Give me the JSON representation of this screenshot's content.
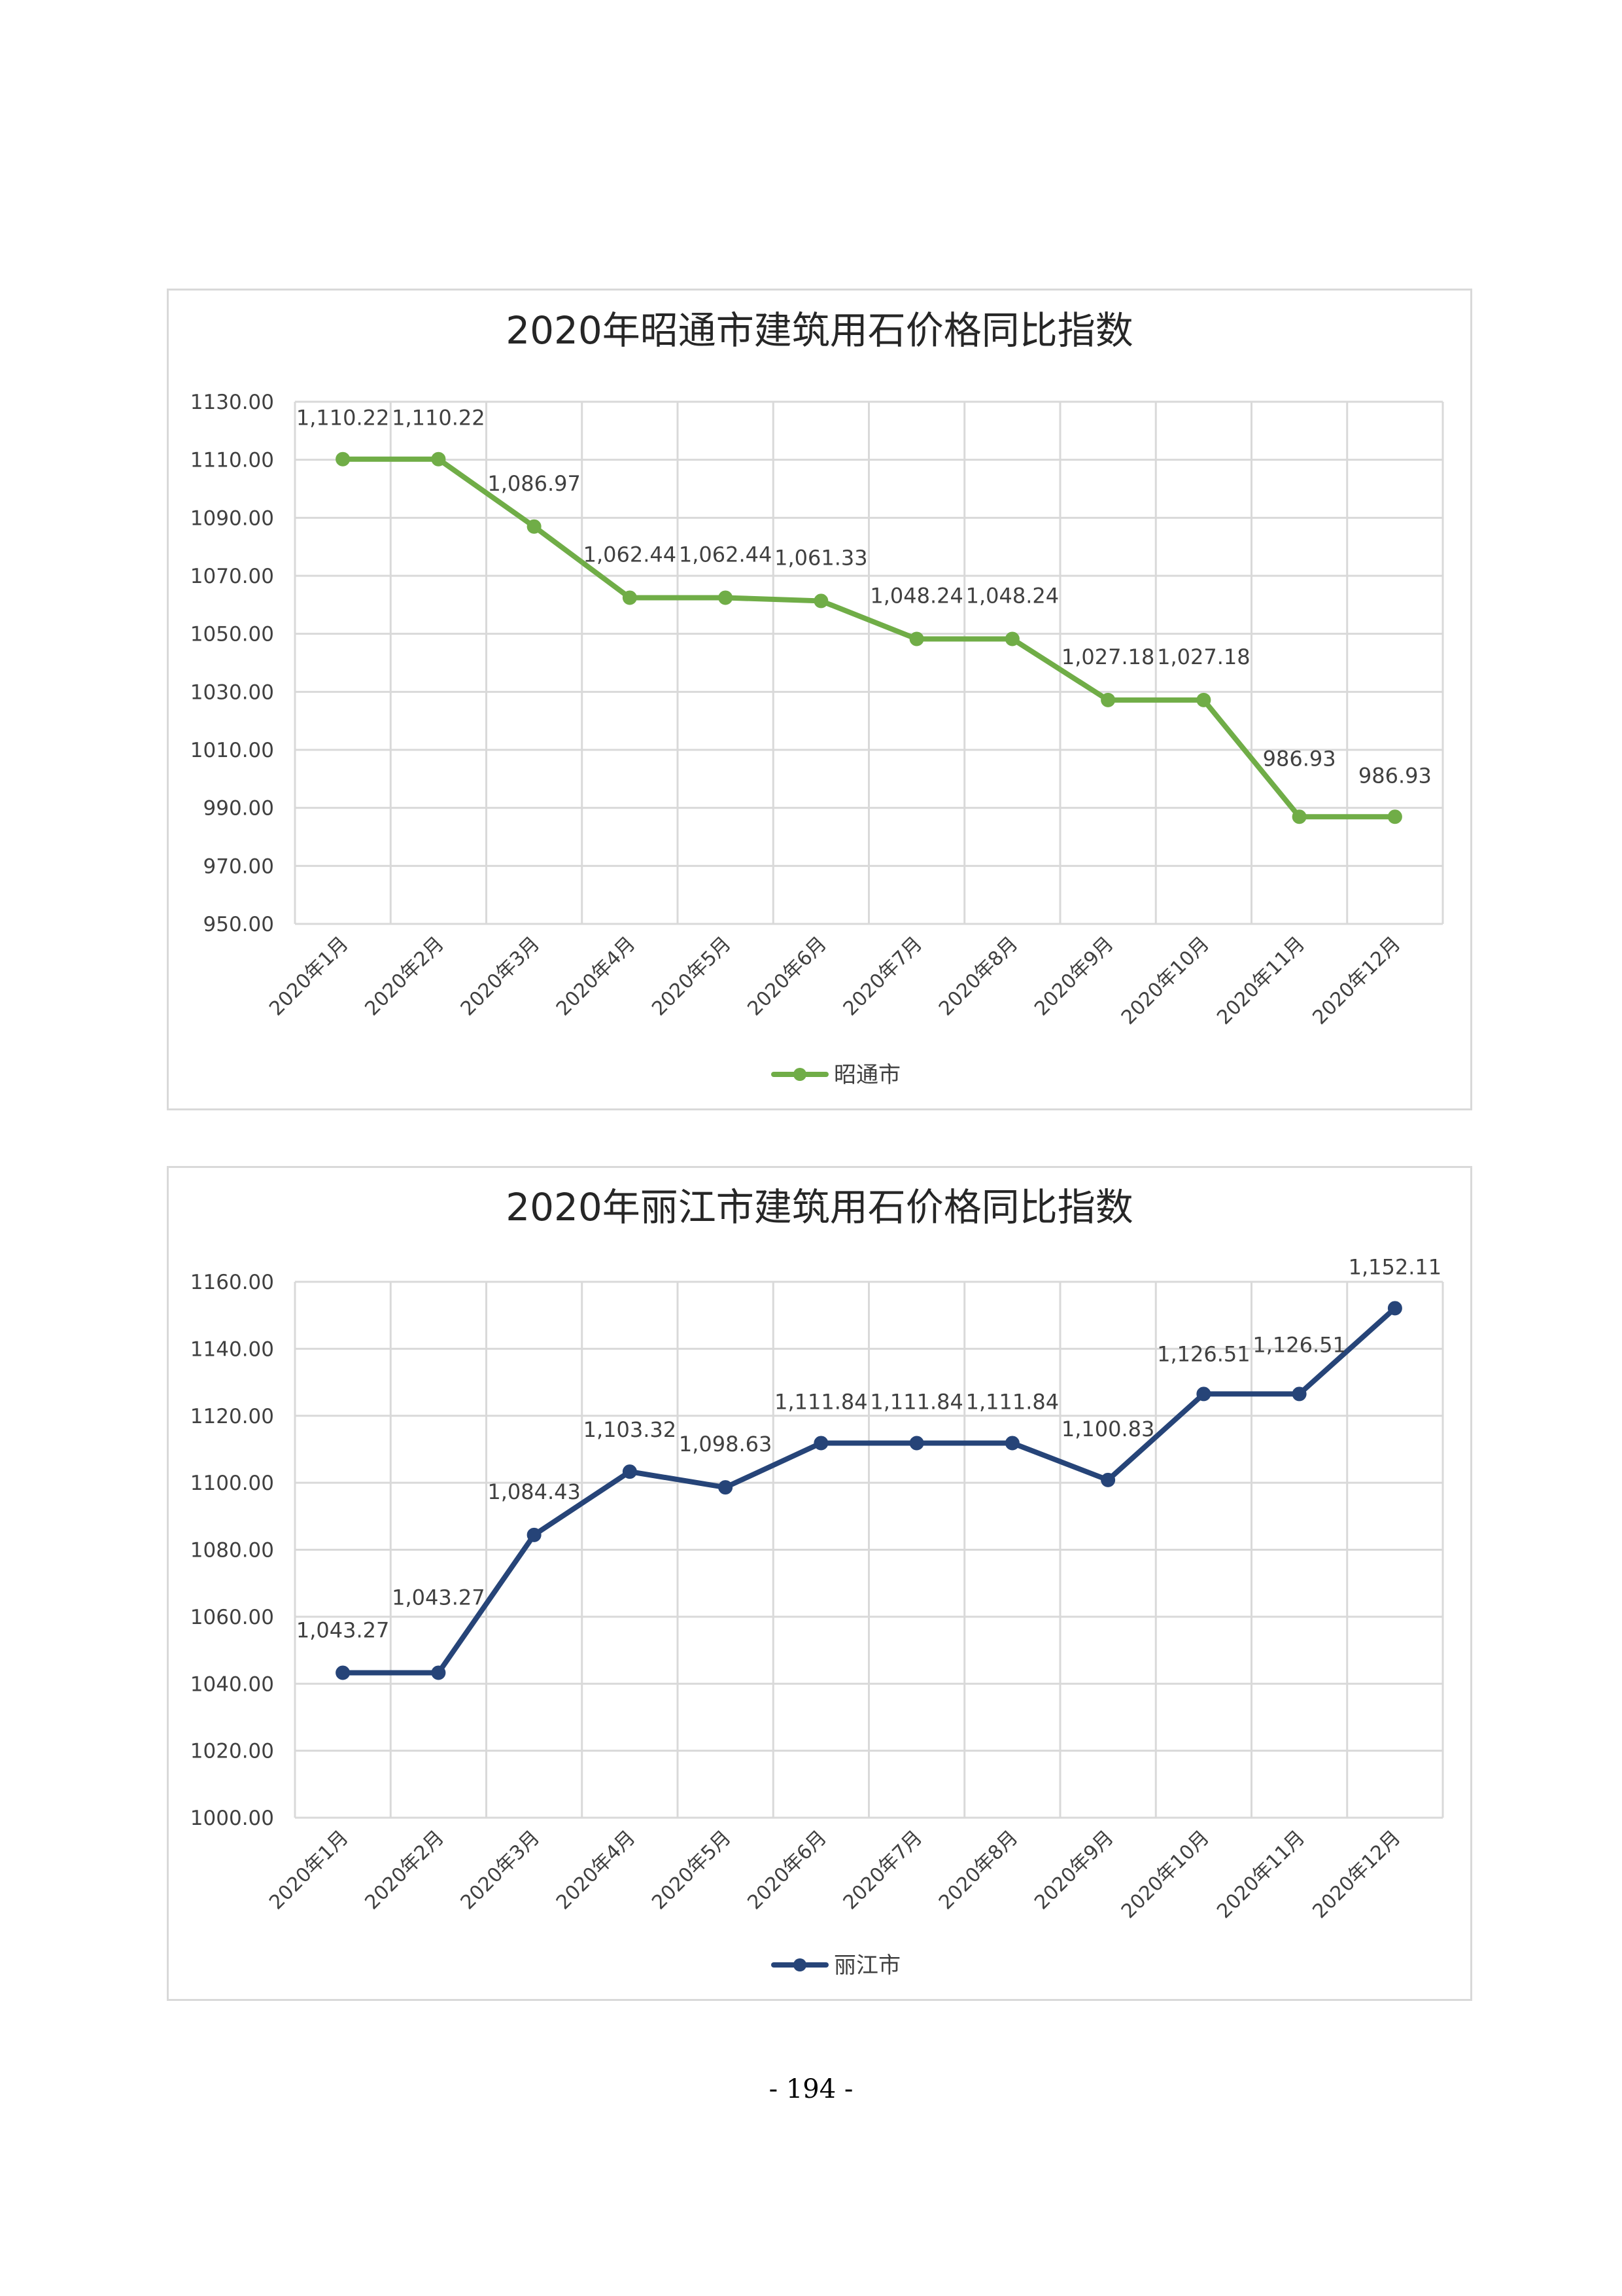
{
  "page": {
    "number": "- 194 -"
  },
  "chart_data": [
    {
      "type": "line",
      "title": "2020年昭通市建筑用石价格同比指数",
      "categories": [
        "2020年1月",
        "2020年2月",
        "2020年3月",
        "2020年4月",
        "2020年5月",
        "2020年6月",
        "2020年7月",
        "2020年8月",
        "2020年9月",
        "2020年10月",
        "2020年11月",
        "2020年12月"
      ],
      "series": [
        {
          "name": "昭通市",
          "color": "#70ad47",
          "values": [
            1110.22,
            1110.22,
            1086.97,
            1062.44,
            1062.44,
            1061.33,
            1048.24,
            1048.24,
            1027.18,
            1027.18,
            986.93,
            986.93
          ],
          "labels": [
            "1,110.22",
            "1,110.22",
            "1,086.97",
            "1,062.44",
            "1,062.44",
            "1,061.33",
            "1,048.24",
            "1,048.24",
            "1,027.18",
            "1,027.18",
            "986.93",
            "986.93"
          ]
        }
      ],
      "yticks": [
        "1130.00",
        "1110.00",
        "1090.00",
        "1070.00",
        "1050.00",
        "1030.00",
        "1010.00",
        "990.00",
        "970.00",
        "950.00"
      ],
      "ylim": [
        950,
        1130
      ],
      "grid": true,
      "legend": "bottom"
    },
    {
      "type": "line",
      "title": "2020年丽江市建筑用石价格同比指数",
      "categories": [
        "2020年1月",
        "2020年2月",
        "2020年3月",
        "2020年4月",
        "2020年5月",
        "2020年6月",
        "2020年7月",
        "2020年8月",
        "2020年9月",
        "2020年10月",
        "2020年11月",
        "2020年12月"
      ],
      "series": [
        {
          "name": "丽江市",
          "color": "#264478",
          "values": [
            1043.27,
            1043.27,
            1084.43,
            1103.32,
            1098.63,
            1111.84,
            1111.84,
            1111.84,
            1100.83,
            1126.51,
            1126.51,
            1152.11
          ],
          "labels": [
            "1,043.27",
            "1,043.27",
            "1,084.43",
            "1,103.32",
            "1,098.63",
            "1,111.84",
            "1,111.84",
            "1,111.84",
            "1,100.83",
            "1,126.51",
            "1,126.51",
            "1,152.11"
          ]
        }
      ],
      "yticks": [
        "1160.00",
        "1140.00",
        "1120.00",
        "1100.00",
        "1080.00",
        "1060.00",
        "1040.00",
        "1020.00",
        "1000.00"
      ],
      "ylim": [
        1000,
        1160
      ],
      "grid": true,
      "legend": "bottom"
    }
  ]
}
